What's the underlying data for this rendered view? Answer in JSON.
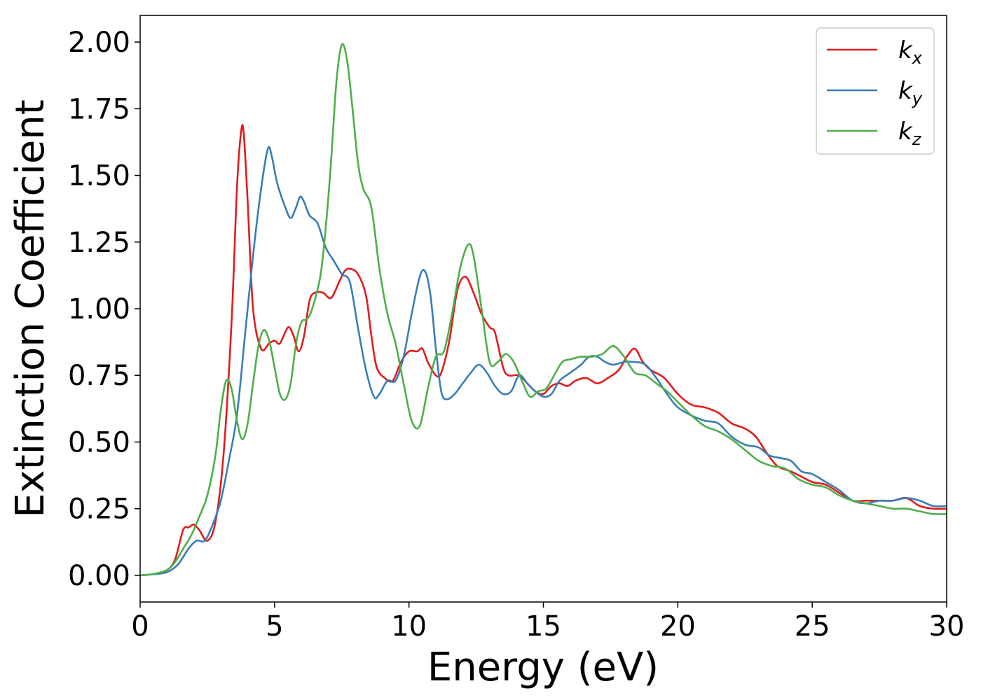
{
  "chart_data": {
    "type": "line",
    "xlabel": "Energy (eV)",
    "ylabel": "Extinction Coefficient",
    "xlim": [
      0,
      30
    ],
    "ylim": [
      -0.1,
      2.1
    ],
    "x_ticks": [
      0,
      5,
      10,
      15,
      20,
      25,
      30
    ],
    "y_ticks": [
      "0.00",
      "0.25",
      "0.50",
      "0.75",
      "1.00",
      "1.25",
      "1.50",
      "1.75",
      "2.00"
    ],
    "grid": false,
    "legend_position": "top-right",
    "series": [
      {
        "name": "k",
        "subscript": "x",
        "color": "#e41a1c",
        "points": [
          [
            0,
            0
          ],
          [
            0.5,
            0.005
          ],
          [
            1,
            0.02
          ],
          [
            1.3,
            0.06
          ],
          [
            1.6,
            0.17
          ],
          [
            1.8,
            0.18
          ],
          [
            2,
            0.19
          ],
          [
            2.2,
            0.17
          ],
          [
            2.5,
            0.13
          ],
          [
            2.8,
            0.2
          ],
          [
            3.1,
            0.45
          ],
          [
            3.4,
            0.95
          ],
          [
            3.6,
            1.45
          ],
          [
            3.75,
            1.66
          ],
          [
            3.85,
            1.66
          ],
          [
            4.0,
            1.4
          ],
          [
            4.2,
            1.0
          ],
          [
            4.5,
            0.85
          ],
          [
            4.8,
            0.87
          ],
          [
            5.0,
            0.88
          ],
          [
            5.2,
            0.87
          ],
          [
            5.5,
            0.93
          ],
          [
            5.7,
            0.9
          ],
          [
            5.9,
            0.84
          ],
          [
            6.1,
            0.9
          ],
          [
            6.3,
            1.03
          ],
          [
            6.5,
            1.06
          ],
          [
            6.8,
            1.06
          ],
          [
            7.1,
            1.04
          ],
          [
            7.4,
            1.1
          ],
          [
            7.6,
            1.14
          ],
          [
            7.8,
            1.15
          ],
          [
            8.1,
            1.13
          ],
          [
            8.4,
            1.05
          ],
          [
            8.6,
            0.9
          ],
          [
            8.8,
            0.78
          ],
          [
            9.1,
            0.74
          ],
          [
            9.4,
            0.73
          ],
          [
            9.7,
            0.8
          ],
          [
            10.0,
            0.84
          ],
          [
            10.3,
            0.84
          ],
          [
            10.5,
            0.85
          ],
          [
            10.7,
            0.8
          ],
          [
            11.0,
            0.75
          ],
          [
            11.2,
            0.76
          ],
          [
            11.5,
            0.88
          ],
          [
            11.8,
            1.07
          ],
          [
            12.1,
            1.12
          ],
          [
            12.4,
            1.06
          ],
          [
            12.7,
            0.98
          ],
          [
            13.0,
            0.93
          ],
          [
            13.2,
            0.91
          ],
          [
            13.5,
            0.78
          ],
          [
            13.7,
            0.75
          ],
          [
            14.1,
            0.75
          ],
          [
            14.4,
            0.72
          ],
          [
            14.7,
            0.69
          ],
          [
            15.0,
            0.68
          ],
          [
            15.3,
            0.71
          ],
          [
            15.6,
            0.72
          ],
          [
            15.9,
            0.71
          ],
          [
            16.2,
            0.73
          ],
          [
            16.6,
            0.74
          ],
          [
            17.0,
            0.72
          ],
          [
            17.4,
            0.74
          ],
          [
            17.8,
            0.77
          ],
          [
            18.1,
            0.82
          ],
          [
            18.4,
            0.85
          ],
          [
            18.7,
            0.8
          ],
          [
            19.0,
            0.77
          ],
          [
            19.5,
            0.74
          ],
          [
            20.0,
            0.68
          ],
          [
            20.5,
            0.64
          ],
          [
            21.0,
            0.63
          ],
          [
            21.5,
            0.61
          ],
          [
            22.0,
            0.57
          ],
          [
            22.5,
            0.55
          ],
          [
            22.9,
            0.52
          ],
          [
            23.3,
            0.46
          ],
          [
            23.7,
            0.41
          ],
          [
            24.2,
            0.39
          ],
          [
            24.6,
            0.37
          ],
          [
            25.0,
            0.35
          ],
          [
            25.5,
            0.34
          ],
          [
            26.0,
            0.31
          ],
          [
            26.5,
            0.28
          ],
          [
            27.0,
            0.28
          ],
          [
            27.5,
            0.28
          ],
          [
            28.0,
            0.28
          ],
          [
            28.5,
            0.29
          ],
          [
            29.0,
            0.26
          ],
          [
            29.5,
            0.25
          ],
          [
            30.0,
            0.25
          ]
        ]
      },
      {
        "name": "k",
        "subscript": "y",
        "color": "#377eb8",
        "points": [
          [
            0,
            0
          ],
          [
            0.5,
            0.004
          ],
          [
            1,
            0.012
          ],
          [
            1.4,
            0.04
          ],
          [
            1.8,
            0.1
          ],
          [
            2.1,
            0.13
          ],
          [
            2.4,
            0.13
          ],
          [
            2.7,
            0.19
          ],
          [
            3.0,
            0.28
          ],
          [
            3.3,
            0.43
          ],
          [
            3.6,
            0.6
          ],
          [
            3.9,
            0.9
          ],
          [
            4.2,
            1.2
          ],
          [
            4.5,
            1.45
          ],
          [
            4.75,
            1.6
          ],
          [
            4.9,
            1.57
          ],
          [
            5.1,
            1.47
          ],
          [
            5.4,
            1.38
          ],
          [
            5.6,
            1.34
          ],
          [
            5.8,
            1.38
          ],
          [
            5.95,
            1.42
          ],
          [
            6.1,
            1.4
          ],
          [
            6.3,
            1.35
          ],
          [
            6.6,
            1.32
          ],
          [
            6.9,
            1.23
          ],
          [
            7.2,
            1.18
          ],
          [
            7.5,
            1.13
          ],
          [
            7.8,
            1.1
          ],
          [
            8.1,
            0.93
          ],
          [
            8.4,
            0.77
          ],
          [
            8.7,
            0.67
          ],
          [
            8.9,
            0.68
          ],
          [
            9.2,
            0.73
          ],
          [
            9.5,
            0.73
          ],
          [
            9.8,
            0.82
          ],
          [
            10.1,
            0.98
          ],
          [
            10.4,
            1.12
          ],
          [
            10.6,
            1.14
          ],
          [
            10.8,
            1.05
          ],
          [
            11.0,
            0.85
          ],
          [
            11.2,
            0.69
          ],
          [
            11.4,
            0.66
          ],
          [
            11.7,
            0.68
          ],
          [
            12.0,
            0.72
          ],
          [
            12.3,
            0.76
          ],
          [
            12.6,
            0.79
          ],
          [
            12.9,
            0.76
          ],
          [
            13.2,
            0.71
          ],
          [
            13.5,
            0.68
          ],
          [
            13.8,
            0.69
          ],
          [
            14.1,
            0.75
          ],
          [
            14.4,
            0.72
          ],
          [
            14.7,
            0.69
          ],
          [
            15.0,
            0.67
          ],
          [
            15.3,
            0.68
          ],
          [
            15.6,
            0.73
          ],
          [
            16.0,
            0.76
          ],
          [
            16.4,
            0.79
          ],
          [
            16.7,
            0.82
          ],
          [
            17.0,
            0.82
          ],
          [
            17.3,
            0.8
          ],
          [
            17.6,
            0.79
          ],
          [
            18.0,
            0.8
          ],
          [
            18.4,
            0.8
          ],
          [
            18.8,
            0.79
          ],
          [
            19.2,
            0.74
          ],
          [
            19.6,
            0.68
          ],
          [
            20.0,
            0.63
          ],
          [
            20.5,
            0.6
          ],
          [
            21.0,
            0.58
          ],
          [
            21.5,
            0.57
          ],
          [
            22.0,
            0.52
          ],
          [
            22.5,
            0.49
          ],
          [
            23.0,
            0.48
          ],
          [
            23.4,
            0.45
          ],
          [
            23.8,
            0.44
          ],
          [
            24.2,
            0.43
          ],
          [
            24.6,
            0.39
          ],
          [
            25.0,
            0.38
          ],
          [
            25.5,
            0.35
          ],
          [
            26.0,
            0.32
          ],
          [
            26.5,
            0.28
          ],
          [
            27.0,
            0.27
          ],
          [
            27.5,
            0.28
          ],
          [
            28.0,
            0.28
          ],
          [
            28.5,
            0.29
          ],
          [
            29.0,
            0.28
          ],
          [
            29.5,
            0.26
          ],
          [
            30.0,
            0.26
          ]
        ]
      },
      {
        "name": "k",
        "subscript": "z",
        "color": "#4daf4a",
        "points": [
          [
            0,
            0
          ],
          [
            0.5,
            0.005
          ],
          [
            1,
            0.02
          ],
          [
            1.3,
            0.05
          ],
          [
            1.6,
            0.1
          ],
          [
            1.9,
            0.15
          ],
          [
            2.2,
            0.22
          ],
          [
            2.5,
            0.3
          ],
          [
            2.8,
            0.45
          ],
          [
            3.0,
            0.62
          ],
          [
            3.2,
            0.73
          ],
          [
            3.4,
            0.7
          ],
          [
            3.6,
            0.58
          ],
          [
            3.8,
            0.51
          ],
          [
            4.0,
            0.57
          ],
          [
            4.2,
            0.72
          ],
          [
            4.4,
            0.86
          ],
          [
            4.6,
            0.92
          ],
          [
            4.8,
            0.88
          ],
          [
            5.0,
            0.78
          ],
          [
            5.2,
            0.68
          ],
          [
            5.4,
            0.66
          ],
          [
            5.6,
            0.72
          ],
          [
            5.8,
            0.87
          ],
          [
            6.0,
            0.95
          ],
          [
            6.2,
            0.96
          ],
          [
            6.4,
            1.0
          ],
          [
            6.7,
            1.12
          ],
          [
            6.9,
            1.3
          ],
          [
            7.1,
            1.55
          ],
          [
            7.3,
            1.85
          ],
          [
            7.5,
            1.99
          ],
          [
            7.7,
            1.93
          ],
          [
            7.9,
            1.75
          ],
          [
            8.1,
            1.55
          ],
          [
            8.3,
            1.45
          ],
          [
            8.6,
            1.38
          ],
          [
            8.9,
            1.15
          ],
          [
            9.2,
            0.98
          ],
          [
            9.5,
            0.87
          ],
          [
            9.8,
            0.72
          ],
          [
            10.1,
            0.58
          ],
          [
            10.4,
            0.56
          ],
          [
            10.7,
            0.7
          ],
          [
            11.0,
            0.82
          ],
          [
            11.3,
            0.84
          ],
          [
            11.6,
            0.98
          ],
          [
            11.9,
            1.15
          ],
          [
            12.2,
            1.24
          ],
          [
            12.4,
            1.2
          ],
          [
            12.7,
            1.0
          ],
          [
            13.0,
            0.8
          ],
          [
            13.3,
            0.8
          ],
          [
            13.6,
            0.83
          ],
          [
            13.9,
            0.8
          ],
          [
            14.2,
            0.73
          ],
          [
            14.5,
            0.67
          ],
          [
            14.8,
            0.69
          ],
          [
            15.1,
            0.7
          ],
          [
            15.4,
            0.75
          ],
          [
            15.7,
            0.8
          ],
          [
            16.0,
            0.81
          ],
          [
            16.4,
            0.82
          ],
          [
            16.8,
            0.82
          ],
          [
            17.2,
            0.83
          ],
          [
            17.6,
            0.86
          ],
          [
            18.0,
            0.82
          ],
          [
            18.4,
            0.76
          ],
          [
            18.8,
            0.75
          ],
          [
            19.2,
            0.72
          ],
          [
            19.6,
            0.69
          ],
          [
            20.0,
            0.65
          ],
          [
            20.5,
            0.6
          ],
          [
            21.0,
            0.56
          ],
          [
            21.5,
            0.54
          ],
          [
            22.0,
            0.51
          ],
          [
            22.5,
            0.47
          ],
          [
            23.0,
            0.43
          ],
          [
            23.5,
            0.41
          ],
          [
            24.0,
            0.4
          ],
          [
            24.5,
            0.36
          ],
          [
            25.0,
            0.34
          ],
          [
            25.5,
            0.33
          ],
          [
            26.0,
            0.3
          ],
          [
            26.5,
            0.28
          ],
          [
            27.0,
            0.27
          ],
          [
            27.5,
            0.26
          ],
          [
            28.0,
            0.25
          ],
          [
            28.5,
            0.25
          ],
          [
            29.0,
            0.24
          ],
          [
            29.5,
            0.23
          ],
          [
            30.0,
            0.23
          ]
        ]
      }
    ]
  }
}
